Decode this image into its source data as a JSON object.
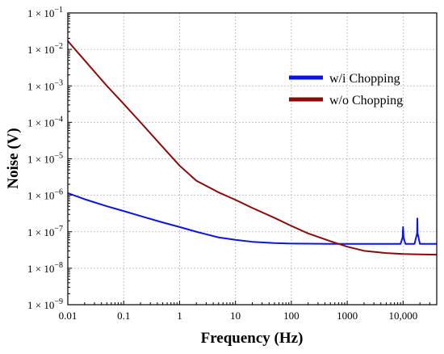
{
  "chart_data": {
    "type": "line",
    "title": "",
    "xlabel": "Frequency (Hz)",
    "ylabel": "Noise (V)",
    "x_scale": "log",
    "y_scale": "log",
    "xlim": [
      0.01,
      40000
    ],
    "ylim": [
      1e-09,
      0.1
    ],
    "grid": true,
    "legend_position": "top-right",
    "x_ticks": [
      {
        "value": 0.01,
        "label": "0.01"
      },
      {
        "value": 0.1,
        "label": "0.1"
      },
      {
        "value": 1,
        "label": "1"
      },
      {
        "value": 10,
        "label": "10"
      },
      {
        "value": 100,
        "label": "100"
      },
      {
        "value": 1000,
        "label": "1000"
      },
      {
        "value": 10000,
        "label": "10,000"
      }
    ],
    "y_ticks": [
      {
        "value": 0.1,
        "label": "1 × 10",
        "exp": "−1"
      },
      {
        "value": 0.01,
        "label": "1 × 10",
        "exp": "−2"
      },
      {
        "value": 0.001,
        "label": "1 × 10",
        "exp": "−3"
      },
      {
        "value": 0.0001,
        "label": "1 × 10",
        "exp": "−4"
      },
      {
        "value": 1e-05,
        "label": "1 × 10",
        "exp": "−5"
      },
      {
        "value": 1e-06,
        "label": "1 × 10",
        "exp": "−6"
      },
      {
        "value": 1e-07,
        "label": "1 × 10",
        "exp": "−7"
      },
      {
        "value": 1e-08,
        "label": "1 × 10",
        "exp": "−8"
      },
      {
        "value": 1e-09,
        "label": "1 × 10",
        "exp": "−9"
      }
    ],
    "series": [
      {
        "name": "w/i Chopping",
        "color": "#0a14e6",
        "x": [
          0.01,
          0.02,
          0.05,
          0.1,
          0.2,
          0.5,
          1,
          2,
          5,
          10,
          20,
          50,
          100,
          200,
          500,
          1000,
          2000,
          5000,
          9000,
          9800,
          10000,
          10200,
          11000,
          16000,
          17800,
          18000,
          18200,
          20000,
          30000,
          40000
        ],
        "y": [
          1.15e-06,
          7.8e-07,
          5e-07,
          3.7e-07,
          2.7e-07,
          1.8e-07,
          1.35e-07,
          1e-07,
          7e-08,
          6e-08,
          5.3e-08,
          4.9e-08,
          4.75e-08,
          4.7e-08,
          4.65e-08,
          4.65e-08,
          4.65e-08,
          4.65e-08,
          4.65e-08,
          7e-08,
          1.35e-07,
          7e-08,
          4.65e-08,
          4.65e-08,
          9e-08,
          2.3e-07,
          9e-08,
          4.65e-08,
          4.65e-08,
          4.65e-08
        ]
      },
      {
        "name": "w/o Chopping",
        "color": "#8b0a0a",
        "x": [
          0.01,
          0.02,
          0.05,
          0.1,
          0.2,
          0.5,
          1,
          2,
          5,
          10,
          20,
          50,
          100,
          200,
          500,
          1000,
          2000,
          5000,
          10000,
          20000,
          40000
        ],
        "y": [
          0.017,
          0.005,
          0.001,
          0.00032,
          0.0001,
          2.1e-05,
          6.5e-06,
          2.5e-06,
          1.2e-06,
          7.5e-07,
          4.5e-07,
          2.4e-07,
          1.45e-07,
          9e-08,
          5.5e-08,
          3.9e-08,
          3e-08,
          2.6e-08,
          2.45e-08,
          2.4e-08,
          2.35e-08
        ]
      }
    ]
  }
}
